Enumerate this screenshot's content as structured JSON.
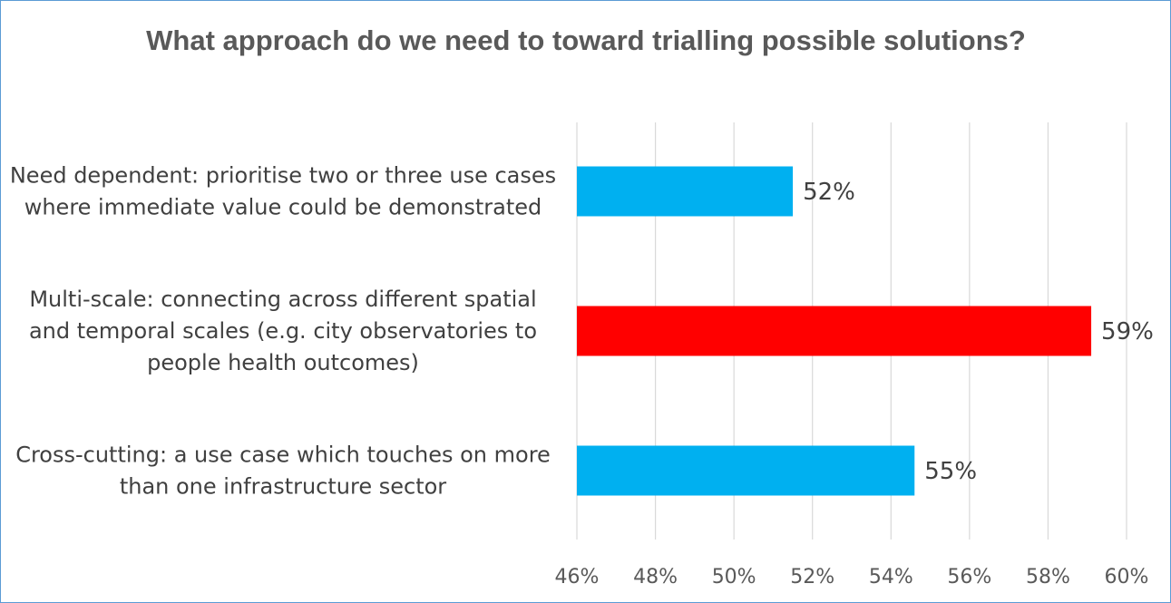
{
  "chart_data": {
    "type": "bar",
    "orientation": "horizontal",
    "title": "What approach do we need to toward trialling possible solutions?",
    "categories": [
      "Need dependent: prioritise two or three use cases where immediate value could be demonstrated",
      "Multi-scale: connecting across different spatial and temporal scales (e.g. city observatories to people health outcomes)",
      "Cross-cutting: a use case which touches on more than one infrastructure sector"
    ],
    "category_lines": [
      [
        "Need dependent: prioritise two or three use cases",
        "where immediate value could be demonstrated"
      ],
      [
        "Multi-scale: connecting across different spatial",
        "and temporal scales (e.g. city observatories to",
        "people health outcomes)"
      ],
      [
        "Cross-cutting: a use case which touches on more",
        "than one infrastructure sector"
      ]
    ],
    "values": [
      51.5,
      59.1,
      54.6
    ],
    "data_labels": [
      "52%",
      "59%",
      "55%"
    ],
    "bar_colors": [
      "#00b0f0",
      "#ff0000",
      "#00b0f0"
    ],
    "xlim": [
      46,
      60
    ],
    "xticks": [
      46,
      48,
      50,
      52,
      54,
      56,
      58,
      60
    ],
    "xtick_labels": [
      "46%",
      "48%",
      "50%",
      "52%",
      "54%",
      "56%",
      "58%",
      "60%"
    ],
    "xlabel": "",
    "ylabel": "",
    "grid": "vertical",
    "legend": "none"
  }
}
